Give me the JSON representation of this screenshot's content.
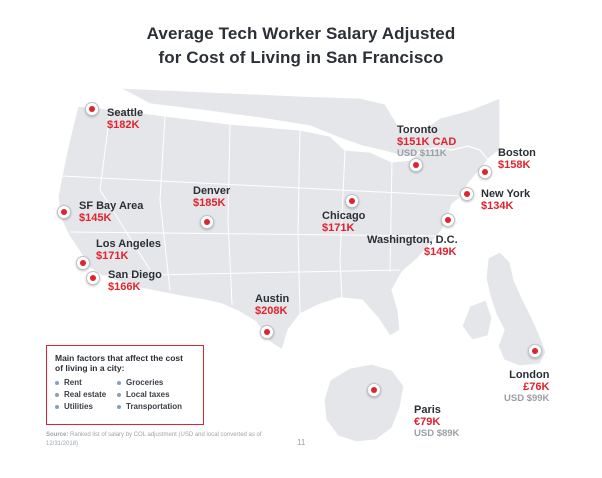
{
  "title": {
    "line1": "Average Tech Worker Salary Adjusted",
    "line2": "for Cost of Living in San Francisco"
  },
  "cities": [
    {
      "name": "Seattle",
      "salary": "$182K"
    },
    {
      "name": "Toronto",
      "salary": "$151K CAD",
      "usd": "USD $111K"
    },
    {
      "name": "Boston",
      "salary": "$158K"
    },
    {
      "name": "SF Bay Area",
      "salary": "$145K"
    },
    {
      "name": "Denver",
      "salary": "$185K"
    },
    {
      "name": "New York",
      "salary": "$134K"
    },
    {
      "name": "Chicago",
      "salary": "$171K"
    },
    {
      "name": "Washington, D.C.",
      "salary": "$149K"
    },
    {
      "name": "Los Angeles",
      "salary": "$171K"
    },
    {
      "name": "San Diego",
      "salary": "$166K"
    },
    {
      "name": "Austin",
      "salary": "$208K"
    },
    {
      "name": "London",
      "salary": "£76K",
      "usd": "USD $99K"
    },
    {
      "name": "Paris",
      "salary": "€79K",
      "usd": "USD $89K"
    }
  ],
  "factors": {
    "title": "Main factors that affect the cost of living in a city:",
    "items": [
      "Rent",
      "Groceries",
      "Real estate",
      "Local taxes",
      "Utilities",
      "Transportation"
    ]
  },
  "source": {
    "label": "Source:",
    "text": "Ranked list of salary by COL adjustment (USD and local converted as of 12/31/2018)"
  },
  "page_number": "11",
  "colors": {
    "accent": "#e0232e",
    "land": "#e4e6e9",
    "borders": "#ffffff",
    "text": "#2b2f36",
    "muted": "#9aa0a6"
  },
  "icons": {
    "marker": "map-pin-dot-icon"
  }
}
